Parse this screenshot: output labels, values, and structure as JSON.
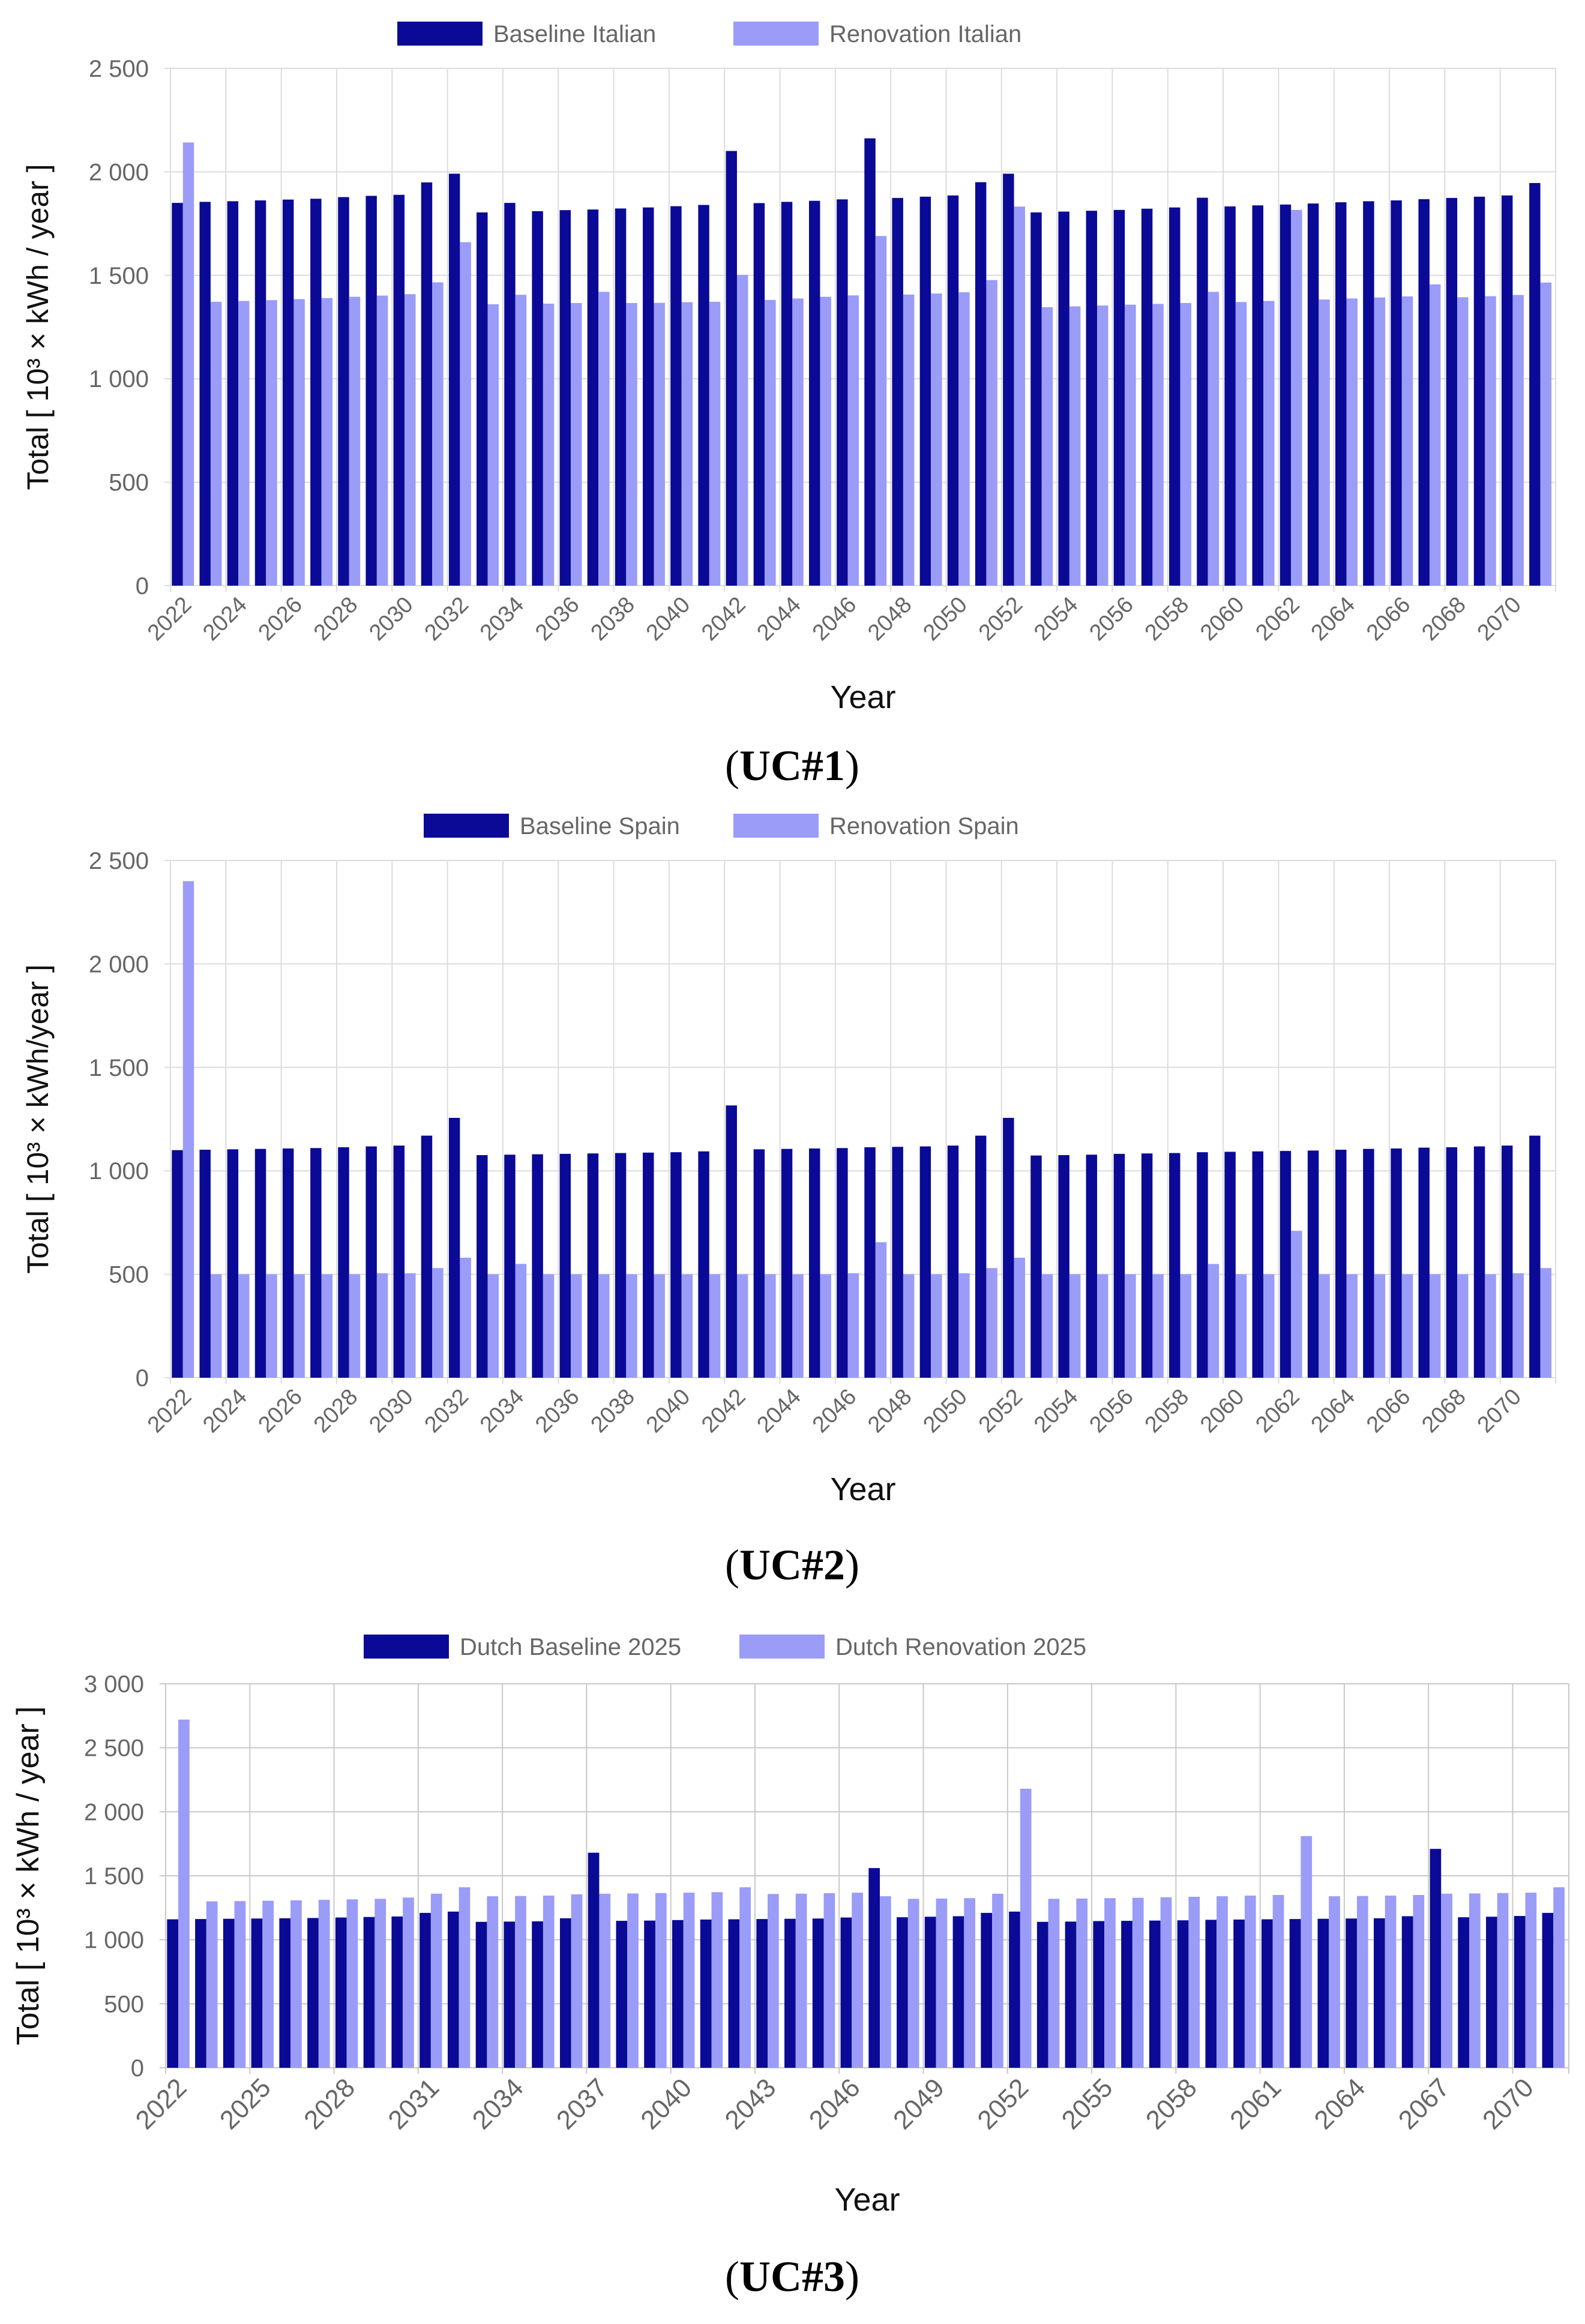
{
  "colors": {
    "baseline": "#0a0a96",
    "renovation": "#9a9cf8",
    "grid": "#dcdcdc",
    "tick": "#666666"
  },
  "panels": [
    {
      "caption_open": "(",
      "caption_bold": "UC#1",
      "caption_close": ")",
      "chart_data": {
        "type": "bar",
        "xlabel": "Year",
        "ylabel": "Total [ 10³ × kWh / year ]",
        "ylim": [
          0,
          2500
        ],
        "yticks": [
          0,
          500,
          1000,
          1500,
          2000,
          2500
        ],
        "ytick_labels": [
          "0",
          "500",
          "1 000",
          "1 500",
          "2 000",
          "2 500"
        ],
        "legend_position": "top-center",
        "grid": true,
        "categories": [
          2022,
          2023,
          2024,
          2025,
          2026,
          2027,
          2028,
          2029,
          2030,
          2031,
          2032,
          2033,
          2034,
          2035,
          2036,
          2037,
          2038,
          2039,
          2040,
          2041,
          2042,
          2043,
          2044,
          2045,
          2046,
          2047,
          2048,
          2049,
          2050,
          2051,
          2052,
          2053,
          2054,
          2055,
          2056,
          2057,
          2058,
          2059,
          2060,
          2061,
          2062,
          2063,
          2064,
          2065,
          2066,
          2067,
          2068,
          2069,
          2070,
          2071
        ],
        "xtick_labels": [
          "2022",
          "2024",
          "2026",
          "2028",
          "2030",
          "2032",
          "2034",
          "2036",
          "2038",
          "2040",
          "2042",
          "2044",
          "2046",
          "2048",
          "2050",
          "2052",
          "2054",
          "2056",
          "2058",
          "2060",
          "2062",
          "2064",
          "2066",
          "2068",
          "2070"
        ],
        "xtick_step": 2,
        "series": [
          {
            "name": "Baseline Italian",
            "color": "#0a0a96",
            "values": [
              1850,
              1855,
              1858,
              1862,
              1866,
              1870,
              1878,
              1884,
              1889,
              1949,
              1991,
              1804,
              1850,
              1810,
              1815,
              1818,
              1823,
              1828,
              1834,
              1840,
              2101,
              1849,
              1855,
              1860,
              1867,
              2162,
              1874,
              1880,
              1886,
              1950,
              1991,
              1804,
              1808,
              1812,
              1816,
              1822,
              1828,
              1875,
              1833,
              1838,
              1842,
              1847,
              1853,
              1858,
              1862,
              1868,
              1874,
              1880,
              1886,
              1946
            ]
          },
          {
            "name": "Renovation Italian",
            "color": "#9a9cf8",
            "values": [
              2142,
              1372,
              1376,
              1380,
              1385,
              1390,
              1396,
              1402,
              1409,
              1466,
              1660,
              1360,
              1406,
              1363,
              1366,
              1420,
              1366,
              1367,
              1370,
              1372,
              1502,
              1381,
              1388,
              1396,
              1403,
              1690,
              1407,
              1412,
              1418,
              1477,
              1832,
              1346,
              1350,
              1354,
              1358,
              1362,
              1366,
              1420,
              1371,
              1376,
              1816,
              1383,
              1388,
              1393,
              1398,
              1456,
              1394,
              1399,
              1405,
              1465
            ]
          }
        ]
      }
    },
    {
      "caption_open": "(",
      "caption_bold": "UC#2",
      "caption_close": ")",
      "chart_data": {
        "type": "bar",
        "xlabel": "Year",
        "ylabel": "Total [ 10³ × kWh/year ]",
        "ylim": [
          0,
          2500
        ],
        "yticks": [
          0,
          500,
          1000,
          1500,
          2000,
          2500
        ],
        "ytick_labels": [
          "0",
          "500",
          "1 000",
          "1 500",
          "2 000",
          "2 500"
        ],
        "legend_position": "top-center",
        "grid": true,
        "categories": [
          2022,
          2023,
          2024,
          2025,
          2026,
          2027,
          2028,
          2029,
          2030,
          2031,
          2032,
          2033,
          2034,
          2035,
          2036,
          2037,
          2038,
          2039,
          2040,
          2041,
          2042,
          2043,
          2044,
          2045,
          2046,
          2047,
          2048,
          2049,
          2050,
          2051,
          2052,
          2053,
          2054,
          2055,
          2056,
          2057,
          2058,
          2059,
          2060,
          2061,
          2062,
          2063,
          2064,
          2065,
          2066,
          2067,
          2068,
          2069,
          2070,
          2071
        ],
        "xtick_labels": [
          "2022",
          "2024",
          "2026",
          "2028",
          "2030",
          "2032",
          "2034",
          "2036",
          "2038",
          "2040",
          "2042",
          "2044",
          "2046",
          "2048",
          "2050",
          "2052",
          "2054",
          "2056",
          "2058",
          "2060",
          "2062",
          "2064",
          "2066",
          "2068",
          "2070"
        ],
        "xtick_step": 2,
        "series": [
          {
            "name": "Baseline Spain",
            "color": "#0a0a96",
            "values": [
              1100,
              1102,
              1104,
              1106,
              1108,
              1110,
              1114,
              1118,
              1122,
              1170,
              1256,
              1076,
              1078,
              1080,
              1082,
              1084,
              1086,
              1088,
              1090,
              1094,
              1316,
              1104,
              1106,
              1108,
              1110,
              1114,
              1116,
              1118,
              1122,
              1170,
              1256,
              1074,
              1076,
              1078,
              1082,
              1084,
              1086,
              1090,
              1092,
              1094,
              1096,
              1098,
              1102,
              1106,
              1108,
              1112,
              1114,
              1118,
              1122,
              1170
            ]
          },
          {
            "name": "Renovation Spain",
            "color": "#9a9cf8",
            "values": [
              2400,
              500,
              500,
              500,
              500,
              500,
              500,
              505,
              505,
              530,
              580,
              500,
              550,
              500,
              500,
              500,
              500,
              500,
              500,
              500,
              500,
              500,
              500,
              500,
              505,
              655,
              500,
              500,
              505,
              530,
              580,
              500,
              500,
              500,
              500,
              500,
              500,
              550,
              500,
              500,
              710,
              500,
              500,
              500,
              500,
              500,
              500,
              500,
              505,
              530
            ]
          }
        ]
      }
    },
    {
      "caption_open": "(",
      "caption_bold": "UC#3",
      "caption_close": ")",
      "chart_data": {
        "type": "bar",
        "xlabel": "Year",
        "ylabel": "Total [ 10³ × kWh / year ]",
        "ylim": [
          0,
          3000
        ],
        "yticks": [
          0,
          500,
          1000,
          1500,
          2000,
          2500,
          3000
        ],
        "ytick_labels": [
          "0",
          "500",
          "1 000",
          "1 500",
          "2 000",
          "2 500",
          "3 000"
        ],
        "legend_position": "top-center",
        "grid": true,
        "categories": [
          2022,
          2023,
          2024,
          2025,
          2026,
          2027,
          2028,
          2029,
          2030,
          2031,
          2032,
          2033,
          2034,
          2035,
          2036,
          2037,
          2038,
          2039,
          2040,
          2041,
          2042,
          2043,
          2044,
          2045,
          2046,
          2047,
          2048,
          2049,
          2050,
          2051,
          2052,
          2053,
          2054,
          2055,
          2056,
          2057,
          2058,
          2059,
          2060,
          2061,
          2062,
          2063,
          2064,
          2065,
          2066,
          2067,
          2068,
          2069,
          2070,
          2071
        ],
        "xtick_labels": [
          "2022",
          "2025",
          "2028",
          "2031",
          "2034",
          "2037",
          "2040",
          "2043",
          "2046",
          "2049",
          "2052",
          "2055",
          "2058",
          "2061",
          "2064",
          "2067",
          "2070"
        ],
        "xtick_step": 3,
        "series": [
          {
            "name": "Dutch Baseline 2025",
            "color": "#0a0a96",
            "values": [
              1160,
              1162,
              1164,
              1166,
              1168,
              1170,
              1174,
              1178,
              1182,
              1210,
              1220,
              1140,
              1142,
              1144,
              1168,
              1680,
              1148,
              1150,
              1154,
              1158,
              1160,
              1162,
              1164,
              1166,
              1174,
              1560,
              1176,
              1180,
              1184,
              1210,
              1220,
              1140,
              1142,
              1146,
              1148,
              1150,
              1152,
              1156,
              1158,
              1160,
              1162,
              1164,
              1166,
              1168,
              1184,
              1710,
              1176,
              1180,
              1186,
              1210
            ]
          },
          {
            "name": "Dutch Renovation 2025",
            "color": "#9a9cf8",
            "values": [
              2720,
              1300,
              1302,
              1305,
              1308,
              1312,
              1316,
              1320,
              1330,
              1360,
              1410,
              1340,
              1342,
              1345,
              1355,
              1360,
              1362,
              1365,
              1368,
              1372,
              1410,
              1358,
              1360,
              1364,
              1368,
              1340,
              1320,
              1322,
              1325,
              1360,
              2180,
              1320,
              1322,
              1325,
              1328,
              1332,
              1336,
              1340,
              1345,
              1350,
              1810,
              1340,
              1342,
              1345,
              1350,
              1360,
              1362,
              1365,
              1368,
              1410
            ]
          }
        ]
      }
    }
  ]
}
